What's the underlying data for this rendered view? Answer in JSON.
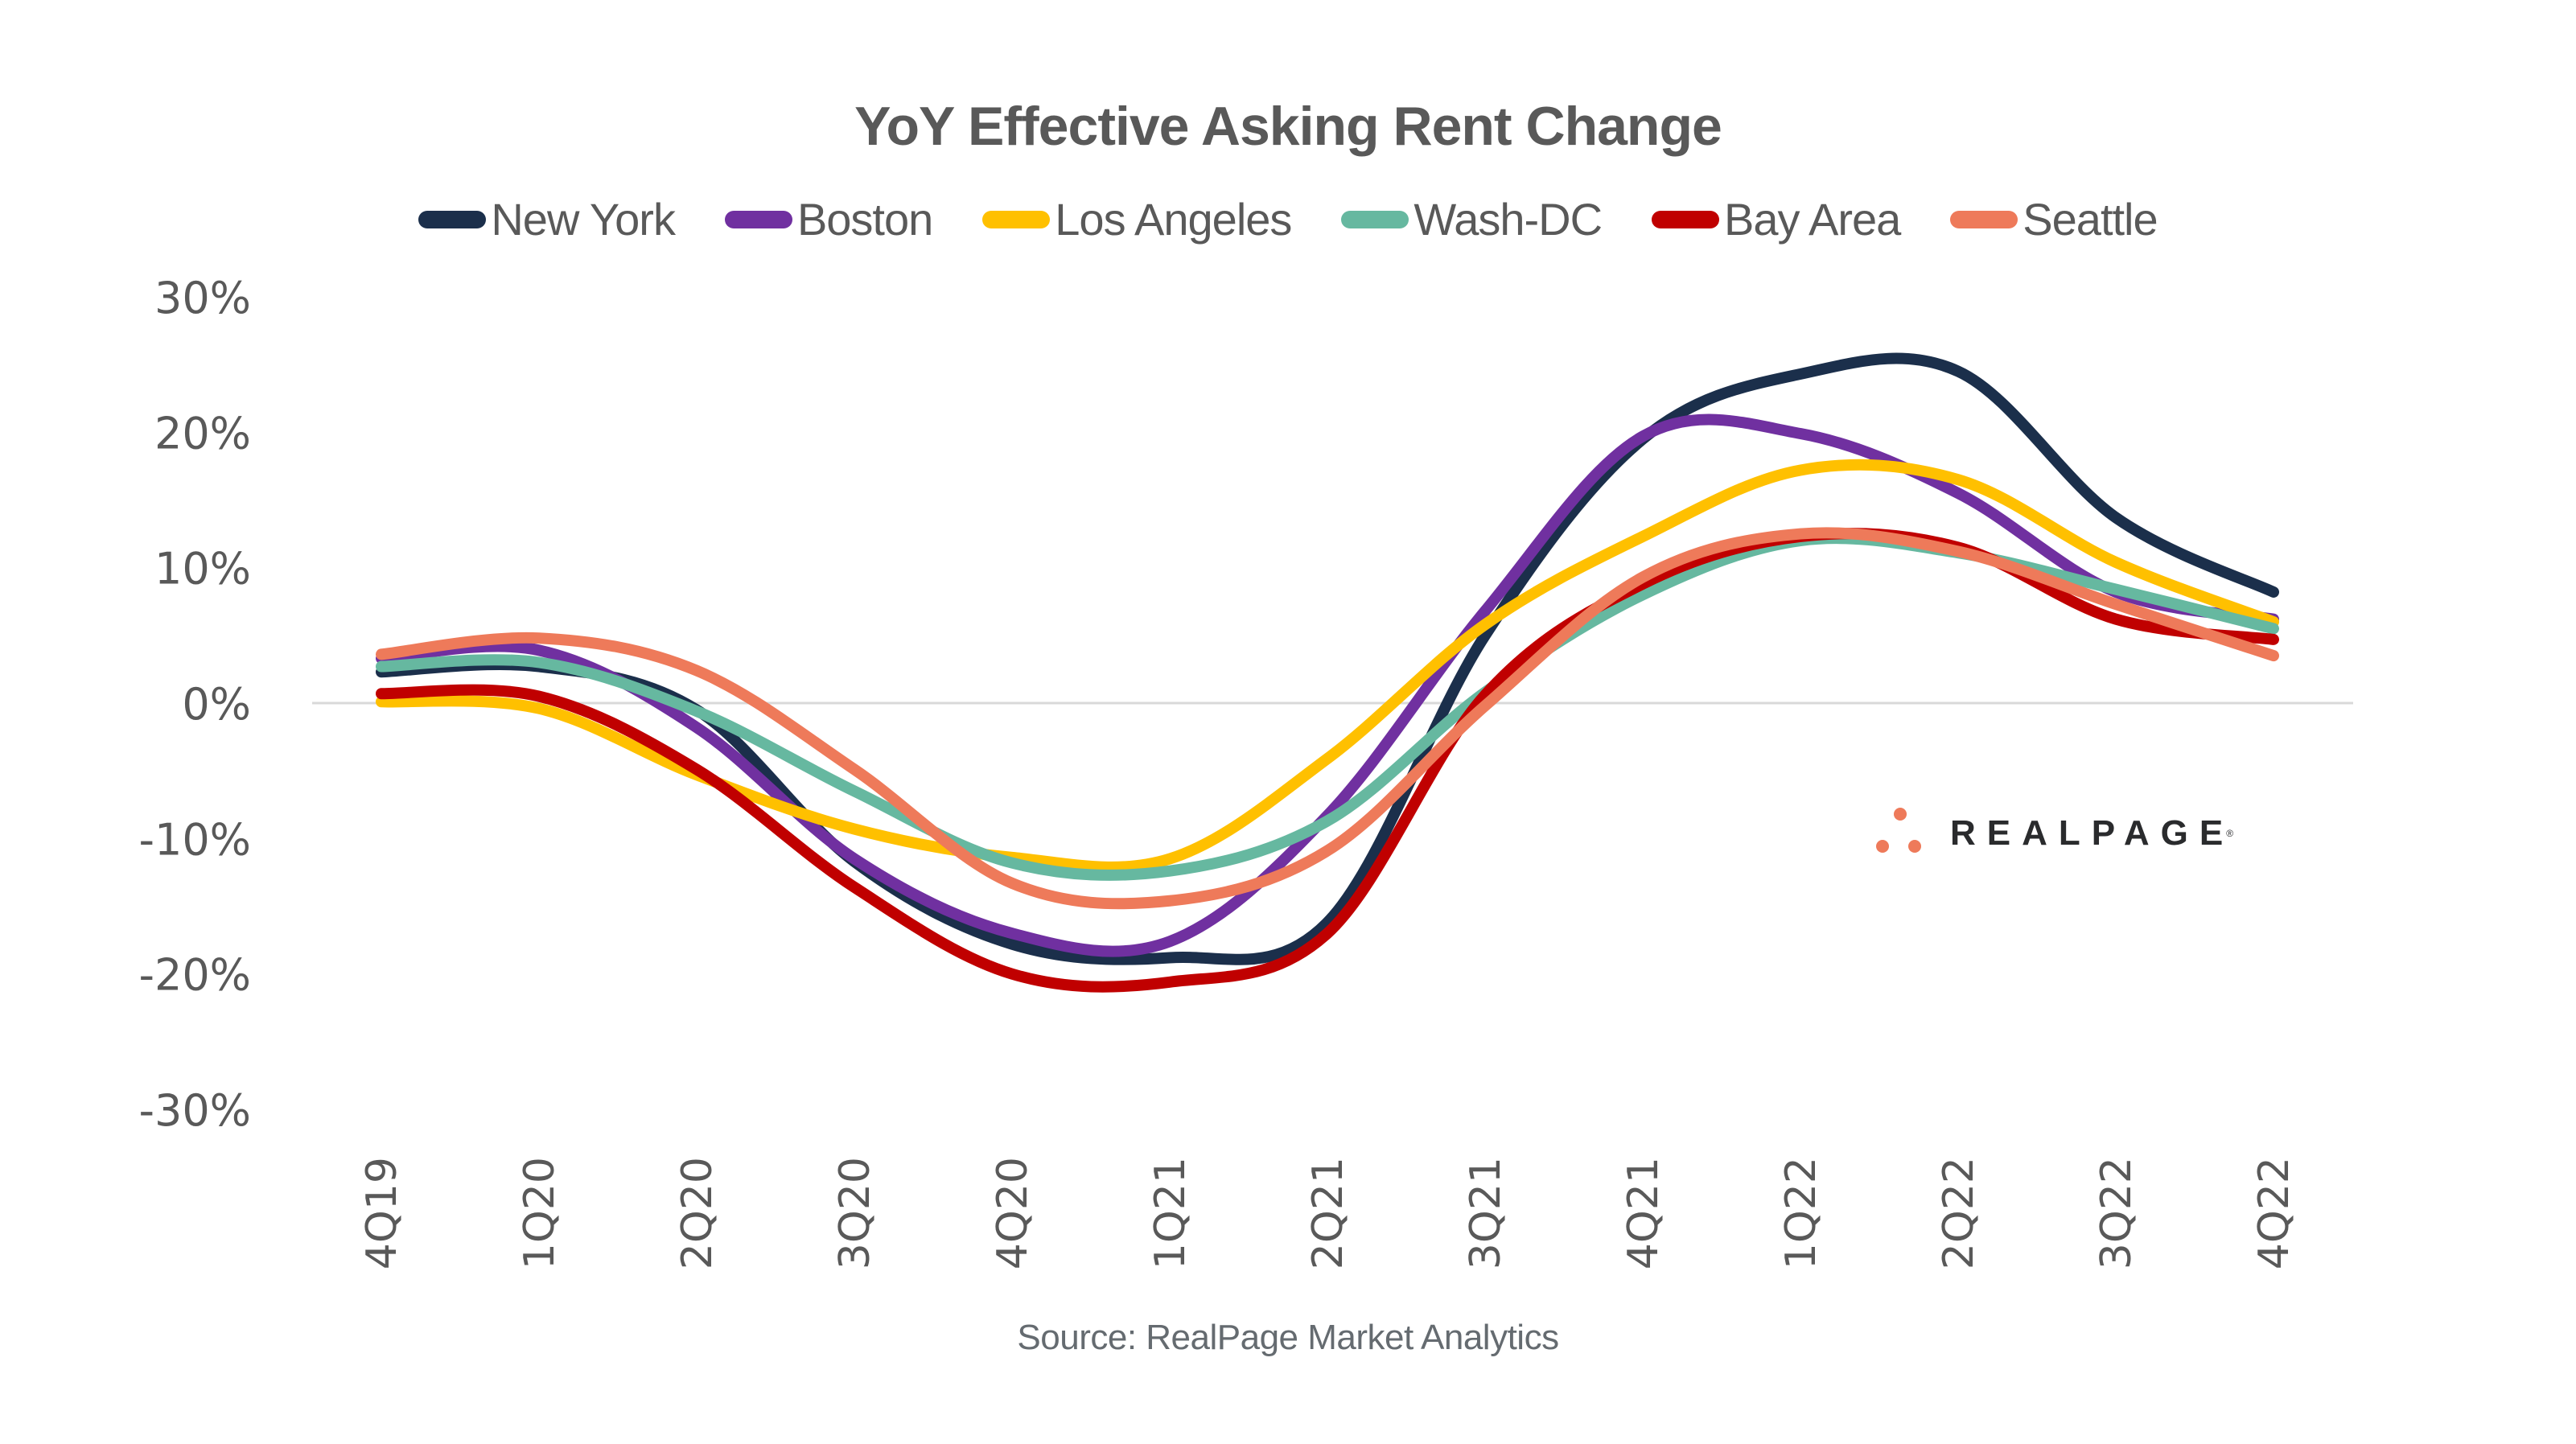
{
  "chart_data": {
    "type": "line",
    "title": "YoY Effective Asking Rent Change",
    "xlabel": "",
    "ylabel": "",
    "source": "Source: RealPage Market Analytics",
    "categories": [
      "4Q19",
      "1Q20",
      "2Q20",
      "3Q20",
      "4Q20",
      "1Q21",
      "2Q21",
      "3Q21",
      "4Q21",
      "1Q22",
      "2Q22",
      "3Q22",
      "4Q22"
    ],
    "ylim": [
      -30,
      30
    ],
    "yticks": [
      30,
      20,
      10,
      0,
      -10,
      -20,
      -30
    ],
    "ytick_labels": [
      "30%",
      "20%",
      "10%",
      "0%",
      "-10%",
      "-20%",
      "-30%"
    ],
    "grid": "zero-line only",
    "legend_position": "top-center",
    "smoothed": true,
    "series": [
      {
        "name": "New York",
        "color": "#1b2f4b",
        "values": [
          2.3,
          2.7,
          -0.5,
          -11.7,
          -17.8,
          -18.8,
          -16.2,
          5.0,
          19.5,
          24.3,
          24.5,
          13.7,
          8.2
        ]
      },
      {
        "name": "Boston",
        "color": "#7030a0",
        "values": [
          3.3,
          3.9,
          -1.8,
          -11.5,
          -17.0,
          -17.6,
          -8.3,
          6.8,
          19.7,
          19.9,
          15.5,
          8.2,
          6.2
        ]
      },
      {
        "name": "Los Angeles",
        "color": "#ffc000",
        "values": [
          0.1,
          -0.4,
          -5.3,
          -9.3,
          -11.4,
          -11.5,
          -4.1,
          5.8,
          12.3,
          17.2,
          16.5,
          10.4,
          6.0
        ]
      },
      {
        "name": "Wash-DC",
        "color": "#66b8a0",
        "values": [
          2.7,
          3.0,
          -0.6,
          -6.5,
          -11.8,
          -12.4,
          -8.7,
          0.8,
          8.0,
          12.0,
          11.1,
          8.4,
          5.5
        ]
      },
      {
        "name": "Bay Area",
        "color": "#c00000",
        "values": [
          0.7,
          0.5,
          -4.9,
          -13.6,
          -20.0,
          -20.6,
          -17.0,
          0.6,
          8.8,
          12.3,
          11.5,
          6.2,
          4.7
        ]
      },
      {
        "name": "Seattle",
        "color": "#ee7a5a",
        "values": [
          3.6,
          4.8,
          2.4,
          -4.9,
          -13.3,
          -14.6,
          -10.9,
          -0.2,
          9.3,
          12.5,
          11.2,
          7.3,
          3.5
        ]
      }
    ]
  },
  "branding": {
    "logo_text": "REALPAGE",
    "logo_mark": "®",
    "logo_color": "#ee7a5a"
  }
}
